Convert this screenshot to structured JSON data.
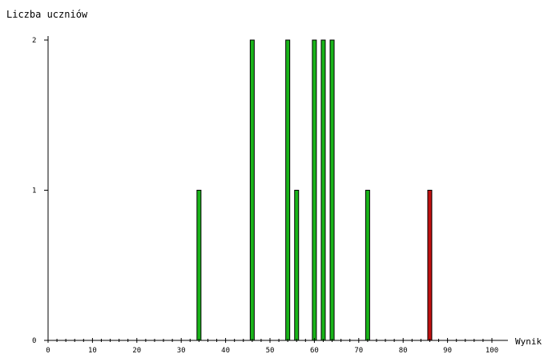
{
  "chart_data": {
    "type": "bar",
    "ylabel": "Liczba uczniów",
    "xlabel": "Wynik",
    "xlim": [
      0,
      100
    ],
    "ylim": [
      0,
      2
    ],
    "x_ticks": [
      "0",
      "10",
      "20",
      "30",
      "40",
      "50",
      "60",
      "70",
      "80",
      "90",
      "100"
    ],
    "y_ticks": [
      "0",
      "1",
      "2"
    ],
    "grid": false,
    "series": [
      {
        "color": "#19b419",
        "points": [
          {
            "x": 34,
            "y": 1
          },
          {
            "x": 46,
            "y": 2
          },
          {
            "x": 54,
            "y": 2
          },
          {
            "x": 56,
            "y": 1
          },
          {
            "x": 60,
            "y": 2
          },
          {
            "x": 62,
            "y": 2
          },
          {
            "x": 64,
            "y": 2
          },
          {
            "x": 72,
            "y": 1
          }
        ]
      },
      {
        "color": "#c01010",
        "points": [
          {
            "x": 86,
            "y": 1
          }
        ]
      }
    ]
  }
}
